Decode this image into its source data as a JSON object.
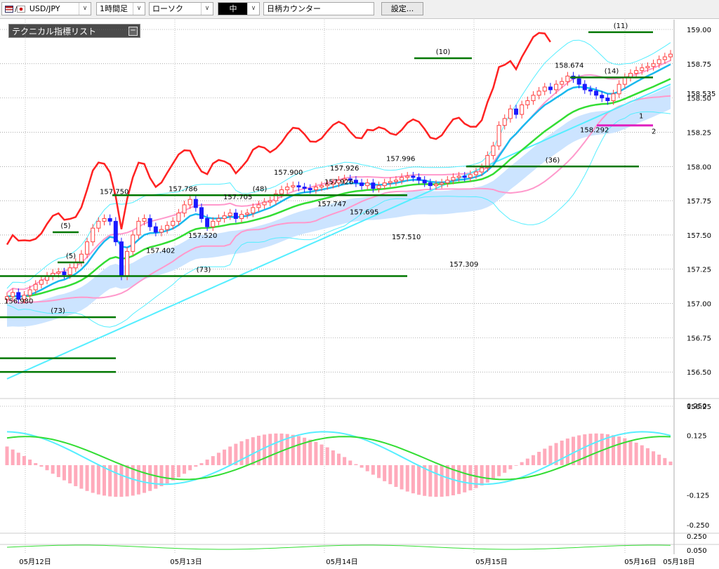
{
  "toolbar": {
    "symbol": "USD/JPY",
    "timeframe": "1時間足",
    "chart_style": "ローソク",
    "size": "中",
    "search_placeholder": "日柄カウンター",
    "settings_button": "設定..."
  },
  "indicator_panel": {
    "title": "テクニカル指標リスト"
  },
  "colors": {
    "bull_candle": "#ff4040",
    "bear_candle": "#1a1aff",
    "ema_fast": "#1ab8ee",
    "ema_slow": "#33dd33",
    "span_high": "#ff2222",
    "bollinger_outer": "#55eeff",
    "bollinger_inner": "#ff99cc",
    "cloud": "#cce4ff",
    "count_line": "#007700",
    "macd_hist": "#ffaabb"
  },
  "chart_data": {
    "type": "candlestick",
    "price_axis": {
      "ylim": [
        156.25,
        159.0
      ],
      "ticks": [
        "159.00",
        "158.75",
        "158.50",
        "158.25",
        "158.00",
        "157.75",
        "157.50",
        "157.25",
        "157.00",
        "156.75",
        "156.50",
        "156.25"
      ],
      "last_price": "158.535"
    },
    "x_labels": [
      "05月12日",
      "05月13日",
      "05月14日",
      "05月15日",
      "05月16日",
      "05月18日"
    ],
    "grid": true,
    "annotations": [
      {
        "text": "156.980"
      },
      {
        "text": "157.750"
      },
      {
        "text": "157.402"
      },
      {
        "text": "157.786"
      },
      {
        "text": "157.520"
      },
      {
        "text": "157.705"
      },
      {
        "text": "157.900"
      },
      {
        "text": "157.926"
      },
      {
        "text": "157.747"
      },
      {
        "text": "157.695"
      },
      {
        "text": "157.926"
      },
      {
        "text": "157.996"
      },
      {
        "text": "157.510"
      },
      {
        "text": "157.309"
      },
      {
        "text": "158.674"
      },
      {
        "text": "158.292"
      }
    ],
    "count_labels": [
      "(5)",
      "(5)",
      "(73)",
      "(48)",
      "(10)",
      "(36)",
      "(11)",
      "(14)"
    ],
    "range_markers": [
      "1",
      "2"
    ],
    "closes": [
      157.05,
      157.08,
      157.03,
      157.06,
      157.1,
      157.14,
      157.17,
      157.2,
      157.22,
      157.23,
      157.21,
      157.26,
      157.3,
      157.36,
      157.45,
      157.55,
      157.6,
      157.62,
      157.6,
      157.45,
      157.2,
      157.38,
      157.5,
      157.6,
      157.62,
      157.56,
      157.52,
      157.54,
      157.57,
      157.6,
      157.66,
      157.72,
      157.76,
      157.7,
      157.62,
      157.56,
      157.6,
      157.62,
      157.64,
      157.66,
      157.62,
      157.65,
      157.66,
      157.7,
      157.72,
      157.74,
      157.75,
      157.8,
      157.83,
      157.85,
      157.86,
      157.85,
      157.84,
      157.83,
      157.85,
      157.86,
      157.87,
      157.88,
      157.9,
      157.91,
      157.9,
      157.88,
      157.86,
      157.88,
      157.84,
      157.86,
      157.88,
      157.89,
      157.9,
      157.92,
      157.93,
      157.92,
      157.9,
      157.88,
      157.86,
      157.87,
      157.88,
      157.9,
      157.92,
      157.93,
      157.92,
      157.94,
      157.96,
      157.99,
      158.08,
      158.15,
      158.3,
      158.35,
      158.42,
      158.38,
      158.45,
      158.48,
      158.52,
      158.55,
      158.58,
      158.56,
      158.6,
      158.62,
      158.66,
      158.64,
      158.6,
      158.56,
      158.55,
      158.52,
      158.5,
      158.48,
      158.53,
      158.6,
      158.65,
      158.68,
      158.7,
      158.72,
      158.73,
      158.75,
      158.78,
      158.8,
      158.82
    ],
    "macd_axis": {
      "ticks": [
        "0.250",
        "0.125",
        "-0.125",
        "-0.250"
      ]
    },
    "sub_axis": {
      "ticks": [
        "0.250",
        "0.050"
      ]
    }
  }
}
